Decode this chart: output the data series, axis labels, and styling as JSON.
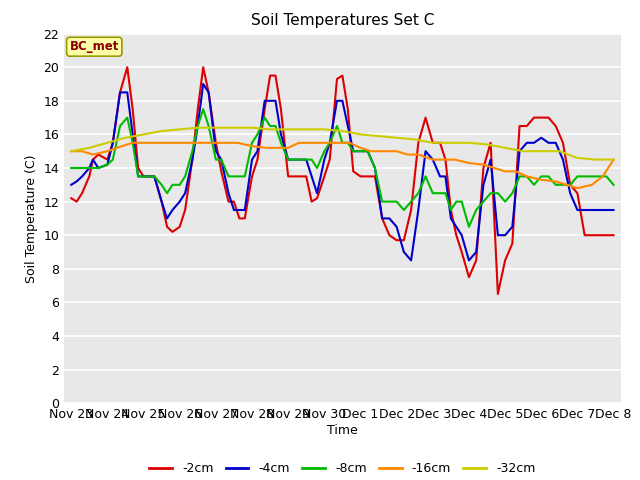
{
  "title": "Soil Temperatures Set C",
  "xlabel": "Time",
  "ylabel": "Soil Temperature (C)",
  "ylim": [
    0,
    22
  ],
  "annotation": "BC_met",
  "x_labels": [
    "Nov 23",
    "Nov 24",
    "Nov 25",
    "Nov 26",
    "Nov 27",
    "Nov 28",
    "Nov 29",
    "Nov 30",
    "Dec 1",
    "Dec 2",
    "Dec 3",
    "Dec 4",
    "Dec 5",
    "Dec 6",
    "Dec 7",
    "Dec 8"
  ],
  "x_positions": [
    0,
    1,
    2,
    3,
    4,
    5,
    6,
    7,
    8,
    9,
    10,
    11,
    12,
    13,
    14,
    15
  ],
  "series": {
    "-2cm": {
      "color": "#dd0000",
      "data_x": [
        0.0,
        0.15,
        0.3,
        0.5,
        0.6,
        0.75,
        1.0,
        1.15,
        1.35,
        1.55,
        1.7,
        1.85,
        2.0,
        2.15,
        2.3,
        2.5,
        2.65,
        2.8,
        3.0,
        3.15,
        3.35,
        3.5,
        3.65,
        3.8,
        4.0,
        4.15,
        4.35,
        4.5,
        4.65,
        4.8,
        5.0,
        5.15,
        5.35,
        5.5,
        5.65,
        5.8,
        6.0,
        6.15,
        6.35,
        6.5,
        6.65,
        6.8,
        7.0,
        7.15,
        7.35,
        7.5,
        7.65,
        7.8,
        8.0,
        8.2,
        8.4,
        8.6,
        8.8,
        9.0,
        9.2,
        9.4,
        9.6,
        9.8,
        10.0,
        10.2,
        10.35,
        10.5,
        10.65,
        10.8,
        11.0,
        11.2,
        11.4,
        11.6,
        11.8,
        12.0,
        12.2,
        12.4,
        12.6,
        12.8,
        13.0,
        13.2,
        13.4,
        13.6,
        13.8,
        14.0,
        14.2,
        14.4,
        14.6,
        14.8,
        15.0
      ],
      "data_y": [
        12.2,
        12.0,
        12.5,
        13.5,
        14.5,
        14.8,
        14.5,
        15.5,
        18.5,
        20.0,
        17.5,
        14.0,
        13.5,
        13.5,
        13.5,
        12.0,
        10.5,
        10.2,
        10.5,
        11.5,
        14.5,
        17.5,
        20.0,
        18.5,
        15.5,
        13.8,
        12.0,
        12.0,
        11.0,
        11.0,
        13.5,
        14.5,
        17.5,
        19.5,
        19.5,
        17.5,
        13.5,
        13.5,
        13.5,
        13.5,
        12.0,
        12.2,
        13.5,
        14.5,
        19.3,
        19.5,
        17.5,
        13.8,
        13.5,
        13.5,
        13.5,
        11.0,
        10.0,
        9.7,
        9.7,
        11.5,
        15.5,
        17.0,
        15.5,
        15.5,
        14.5,
        11.5,
        10.0,
        9.0,
        7.5,
        8.5,
        14.0,
        15.5,
        6.5,
        8.5,
        9.5,
        16.5,
        16.5,
        17.0,
        17.0,
        17.0,
        16.5,
        15.5,
        13.0,
        12.5,
        10.0,
        10.0,
        10.0,
        10.0,
        10.0
      ]
    },
    "-4cm": {
      "color": "#0000cc",
      "data_x": [
        0.0,
        0.15,
        0.3,
        0.5,
        0.6,
        0.75,
        1.0,
        1.15,
        1.35,
        1.55,
        1.7,
        1.85,
        2.0,
        2.15,
        2.3,
        2.5,
        2.65,
        2.8,
        3.0,
        3.15,
        3.35,
        3.5,
        3.65,
        3.8,
        4.0,
        4.15,
        4.35,
        4.5,
        4.65,
        4.8,
        5.0,
        5.15,
        5.35,
        5.5,
        5.65,
        5.8,
        6.0,
        6.15,
        6.35,
        6.5,
        6.65,
        6.8,
        7.0,
        7.15,
        7.35,
        7.5,
        7.65,
        7.8,
        8.0,
        8.2,
        8.4,
        8.6,
        8.8,
        9.0,
        9.2,
        9.4,
        9.6,
        9.8,
        10.0,
        10.2,
        10.35,
        10.5,
        10.65,
        10.8,
        11.0,
        11.2,
        11.4,
        11.6,
        11.8,
        12.0,
        12.2,
        12.4,
        12.6,
        12.8,
        13.0,
        13.2,
        13.4,
        13.6,
        13.8,
        14.0,
        14.2,
        14.4,
        14.6,
        14.8,
        15.0
      ],
      "data_y": [
        13.0,
        13.2,
        13.5,
        14.0,
        14.5,
        14.0,
        14.2,
        15.5,
        18.5,
        18.5,
        16.0,
        13.5,
        13.5,
        13.5,
        13.5,
        12.0,
        11.0,
        11.5,
        12.0,
        12.5,
        14.5,
        16.5,
        19.0,
        18.5,
        15.0,
        14.5,
        12.5,
        11.5,
        11.5,
        11.5,
        14.5,
        15.0,
        18.0,
        18.0,
        18.0,
        16.0,
        14.5,
        14.5,
        14.5,
        14.5,
        13.5,
        12.5,
        14.5,
        15.5,
        18.0,
        18.0,
        16.5,
        15.0,
        15.0,
        15.0,
        14.0,
        11.0,
        11.0,
        10.5,
        9.0,
        8.5,
        11.5,
        15.0,
        14.5,
        13.5,
        13.5,
        11.0,
        10.5,
        10.0,
        8.5,
        9.0,
        13.0,
        14.5,
        10.0,
        10.0,
        10.5,
        15.0,
        15.5,
        15.5,
        15.8,
        15.5,
        15.5,
        14.5,
        12.5,
        11.5,
        11.5,
        11.5,
        11.5,
        11.5,
        11.5
      ]
    },
    "-8cm": {
      "color": "#00bb00",
      "data_x": [
        0.0,
        0.15,
        0.3,
        0.5,
        0.6,
        0.75,
        1.0,
        1.15,
        1.35,
        1.55,
        1.7,
        1.85,
        2.0,
        2.15,
        2.3,
        2.5,
        2.65,
        2.8,
        3.0,
        3.15,
        3.35,
        3.5,
        3.65,
        3.8,
        4.0,
        4.15,
        4.35,
        4.5,
        4.65,
        4.8,
        5.0,
        5.15,
        5.35,
        5.5,
        5.65,
        5.8,
        6.0,
        6.15,
        6.35,
        6.5,
        6.65,
        6.8,
        7.0,
        7.15,
        7.35,
        7.5,
        7.65,
        7.8,
        8.0,
        8.2,
        8.4,
        8.6,
        8.8,
        9.0,
        9.2,
        9.4,
        9.6,
        9.8,
        10.0,
        10.2,
        10.35,
        10.5,
        10.65,
        10.8,
        11.0,
        11.2,
        11.4,
        11.6,
        11.8,
        12.0,
        12.2,
        12.4,
        12.6,
        12.8,
        13.0,
        13.2,
        13.4,
        13.6,
        13.8,
        14.0,
        14.2,
        14.4,
        14.6,
        14.8,
        15.0
      ],
      "data_y": [
        14.0,
        14.0,
        14.0,
        14.0,
        14.0,
        14.0,
        14.2,
        14.5,
        16.5,
        17.0,
        15.5,
        13.5,
        13.5,
        13.5,
        13.5,
        13.0,
        12.5,
        13.0,
        13.0,
        13.5,
        15.0,
        16.5,
        17.5,
        16.5,
        14.5,
        14.5,
        13.5,
        13.5,
        13.5,
        13.5,
        15.5,
        16.0,
        17.0,
        16.5,
        16.5,
        15.5,
        14.5,
        14.5,
        14.5,
        14.5,
        14.5,
        14.0,
        15.0,
        15.5,
        16.5,
        15.5,
        15.5,
        15.0,
        15.0,
        15.0,
        14.0,
        12.0,
        12.0,
        12.0,
        11.5,
        12.0,
        12.5,
        13.5,
        12.5,
        12.5,
        12.5,
        11.5,
        12.0,
        12.0,
        10.5,
        11.5,
        12.0,
        12.5,
        12.5,
        12.0,
        12.5,
        13.5,
        13.5,
        13.0,
        13.5,
        13.5,
        13.0,
        13.0,
        13.0,
        13.5,
        13.5,
        13.5,
        13.5,
        13.5,
        13.0
      ]
    },
    "-16cm": {
      "color": "#ff8800",
      "data_x": [
        0.0,
        0.3,
        0.6,
        1.0,
        1.4,
        1.7,
        2.0,
        2.3,
        2.6,
        3.0,
        3.4,
        3.7,
        4.0,
        4.3,
        4.6,
        5.0,
        5.4,
        5.7,
        6.0,
        6.3,
        6.6,
        7.0,
        7.4,
        7.7,
        8.0,
        8.3,
        8.6,
        9.0,
        9.3,
        9.6,
        10.0,
        10.3,
        10.6,
        11.0,
        11.4,
        11.7,
        12.0,
        12.3,
        12.6,
        13.0,
        13.4,
        13.7,
        14.0,
        14.4,
        14.7,
        15.0
      ],
      "data_y": [
        15.0,
        15.0,
        14.8,
        15.0,
        15.3,
        15.5,
        15.5,
        15.5,
        15.5,
        15.5,
        15.5,
        15.5,
        15.5,
        15.5,
        15.5,
        15.3,
        15.2,
        15.2,
        15.2,
        15.5,
        15.5,
        15.5,
        15.5,
        15.5,
        15.2,
        15.0,
        15.0,
        15.0,
        14.8,
        14.8,
        14.5,
        14.5,
        14.5,
        14.3,
        14.2,
        14.0,
        13.8,
        13.8,
        13.5,
        13.3,
        13.2,
        13.0,
        12.8,
        13.0,
        13.5,
        14.5
      ]
    },
    "-32cm": {
      "color": "#cccc00",
      "data_x": [
        0.0,
        0.5,
        1.0,
        1.5,
        2.0,
        2.5,
        3.0,
        3.5,
        4.0,
        4.5,
        5.0,
        5.5,
        6.0,
        6.5,
        7.0,
        7.5,
        8.0,
        8.5,
        9.0,
        9.5,
        10.0,
        10.5,
        11.0,
        11.5,
        12.0,
        12.5,
        13.0,
        13.5,
        14.0,
        14.5,
        15.0
      ],
      "data_y": [
        15.0,
        15.2,
        15.5,
        15.8,
        16.0,
        16.2,
        16.3,
        16.4,
        16.4,
        16.4,
        16.4,
        16.3,
        16.3,
        16.3,
        16.3,
        16.2,
        16.0,
        15.9,
        15.8,
        15.7,
        15.5,
        15.5,
        15.5,
        15.4,
        15.2,
        15.0,
        15.0,
        15.0,
        14.6,
        14.5,
        14.5
      ]
    }
  },
  "legend": {
    "entries": [
      "-2cm",
      "-4cm",
      "-8cm",
      "-16cm",
      "-32cm"
    ],
    "colors": [
      "#dd0000",
      "#0000cc",
      "#00bb00",
      "#ff8800",
      "#cccc00"
    ]
  }
}
